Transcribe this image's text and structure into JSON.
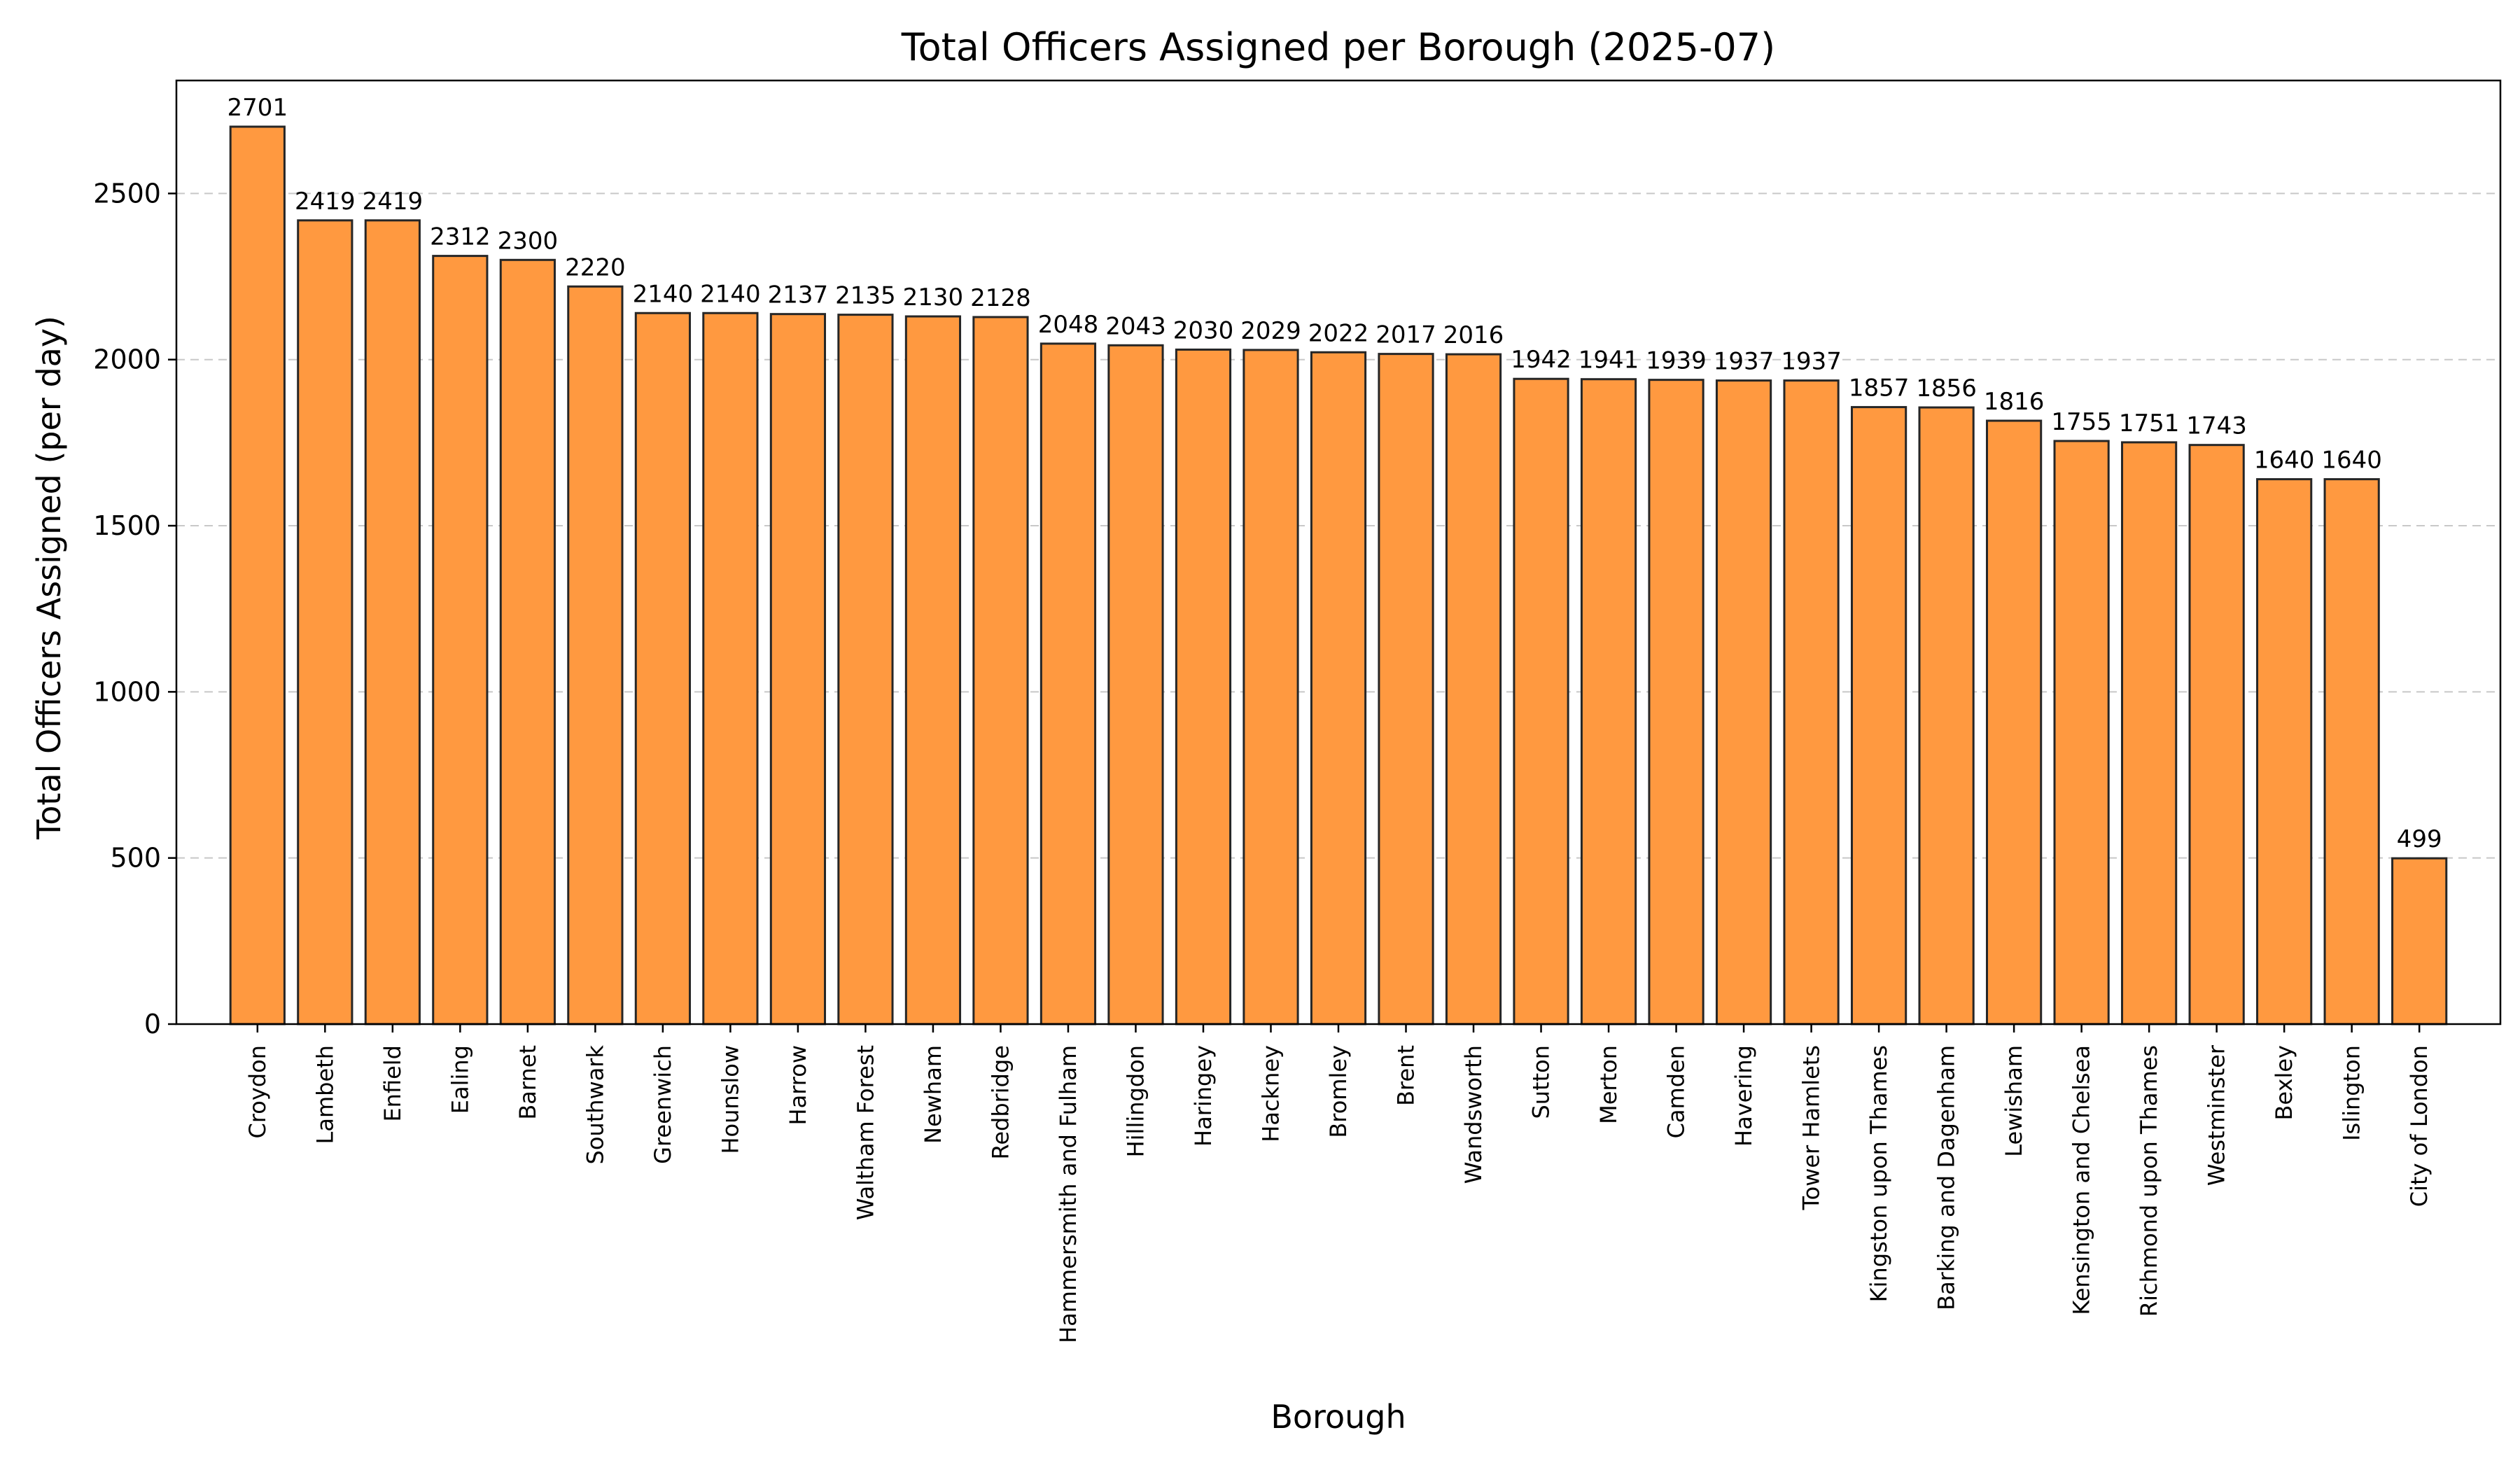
{
  "chart_data": {
    "type": "bar",
    "title": "Total Officers Assigned per Borough (2025-07)",
    "xlabel": "Borough",
    "ylabel": "Total Officers Assigned (per day)",
    "ylim": [
      0,
      2840
    ],
    "yticks": [
      0,
      500,
      1000,
      1500,
      2000,
      2500
    ],
    "grid": "y-dashed",
    "bar_color": "#ff9940",
    "edge_color": "#262626",
    "categories": [
      "Croydon",
      "Lambeth",
      "Enfield",
      "Ealing",
      "Barnet",
      "Southwark",
      "Greenwich",
      "Hounslow",
      "Harrow",
      "Waltham Forest",
      "Newham",
      "Redbridge",
      "Hammersmith and Fulham",
      "Hillingdon",
      "Haringey",
      "Hackney",
      "Bromley",
      "Brent",
      "Wandsworth",
      "Sutton",
      "Merton",
      "Camden",
      "Havering",
      "Tower Hamlets",
      "Kingston upon Thames",
      "Barking and Dagenham",
      "Lewisham",
      "Kensington and Chelsea",
      "Richmond upon Thames",
      "Westminster",
      "Bexley",
      "Islington",
      "City of London"
    ],
    "values": [
      2701,
      2419,
      2419,
      2312,
      2300,
      2220,
      2140,
      2140,
      2137,
      2135,
      2130,
      2128,
      2048,
      2043,
      2030,
      2029,
      2022,
      2017,
      2016,
      1942,
      1941,
      1939,
      1937,
      1937,
      1857,
      1856,
      1816,
      1755,
      1751,
      1743,
      1640,
      1640,
      499
    ]
  }
}
